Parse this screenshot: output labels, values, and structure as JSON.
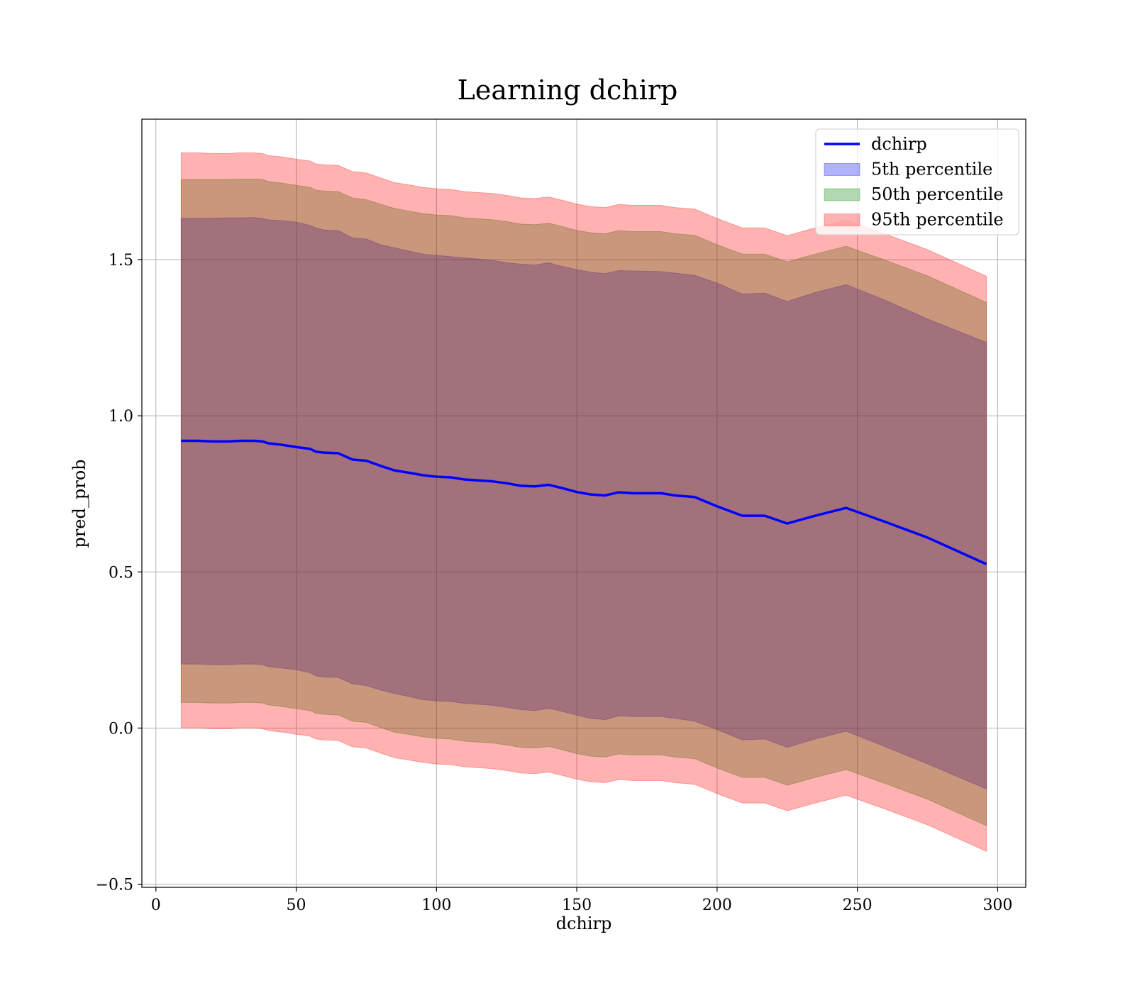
{
  "chart_data": {
    "type": "line",
    "title": "Learning dchirp",
    "xlabel": "dchirp",
    "ylabel": "pred_prob",
    "xlim": [
      -5,
      310
    ],
    "ylim": [
      -0.51,
      1.95
    ],
    "xticks": [
      0,
      50,
      100,
      150,
      200,
      250,
      300
    ],
    "yticks": [
      -0.5,
      0.0,
      0.5,
      1.0,
      1.5
    ],
    "xtick_labels": [
      "0",
      "50",
      "100",
      "150",
      "200",
      "250",
      "300"
    ],
    "ytick_labels": [
      "−0.5",
      "0.0",
      "0.5",
      "1.0",
      "1.5"
    ],
    "grid": true,
    "legend_position": "top-right",
    "x": [
      9,
      15,
      20,
      26,
      30,
      35,
      38,
      40,
      45,
      50,
      55,
      57,
      60,
      65,
      70,
      75,
      80,
      85,
      90,
      95,
      100,
      105,
      110,
      115,
      120,
      125,
      130,
      135,
      140,
      145,
      150,
      155,
      160,
      165,
      170,
      175,
      180,
      185,
      192,
      200,
      209,
      217,
      225,
      235,
      246,
      260,
      275,
      296
    ],
    "series": [
      {
        "name": "dchirp",
        "kind": "line",
        "color": "#0000ff",
        "values": [
          0.92,
          0.92,
          0.918,
          0.918,
          0.92,
          0.92,
          0.918,
          0.912,
          0.907,
          0.9,
          0.894,
          0.885,
          0.882,
          0.88,
          0.86,
          0.856,
          0.84,
          0.825,
          0.818,
          0.81,
          0.805,
          0.803,
          0.796,
          0.793,
          0.79,
          0.784,
          0.776,
          0.774,
          0.779,
          0.768,
          0.756,
          0.748,
          0.745,
          0.755,
          0.752,
          0.752,
          0.752,
          0.745,
          0.74,
          0.71,
          0.68,
          0.68,
          0.655,
          0.68,
          0.705,
          0.66,
          0.61,
          0.525
        ]
      },
      {
        "name": "5th percentile",
        "kind": "band",
        "color": "#0000ff",
        "upper": [
          1.632,
          1.633,
          1.633,
          1.634,
          1.634,
          1.635,
          1.632,
          1.628,
          1.625,
          1.62,
          1.61,
          1.602,
          1.595,
          1.593,
          1.57,
          1.566,
          1.548,
          1.538,
          1.528,
          1.518,
          1.514,
          1.51,
          1.506,
          1.502,
          1.498,
          1.49,
          1.486,
          1.483,
          1.49,
          1.478,
          1.468,
          1.46,
          1.455,
          1.465,
          1.464,
          1.463,
          1.462,
          1.457,
          1.45,
          1.425,
          1.39,
          1.393,
          1.366,
          1.395,
          1.42,
          1.37,
          1.31,
          1.235
        ],
        "lower": [
          0.205,
          0.205,
          0.203,
          0.203,
          0.205,
          0.205,
          0.203,
          0.197,
          0.192,
          0.187,
          0.177,
          0.167,
          0.163,
          0.162,
          0.142,
          0.136,
          0.122,
          0.111,
          0.101,
          0.091,
          0.087,
          0.085,
          0.079,
          0.076,
          0.073,
          0.066,
          0.059,
          0.056,
          0.063,
          0.053,
          0.041,
          0.031,
          0.027,
          0.039,
          0.037,
          0.037,
          0.037,
          0.031,
          0.022,
          -0.005,
          -0.038,
          -0.035,
          -0.062,
          -0.035,
          -0.01,
          -0.06,
          -0.115,
          -0.195
        ]
      },
      {
        "name": "50th percentile",
        "kind": "band",
        "color": "#008000",
        "upper": [
          1.757,
          1.757,
          1.757,
          1.757,
          1.758,
          1.758,
          1.757,
          1.751,
          1.745,
          1.738,
          1.732,
          1.723,
          1.72,
          1.718,
          1.698,
          1.692,
          1.678,
          1.664,
          1.656,
          1.648,
          1.643,
          1.641,
          1.634,
          1.631,
          1.628,
          1.622,
          1.614,
          1.612,
          1.617,
          1.606,
          1.594,
          1.586,
          1.583,
          1.593,
          1.59,
          1.59,
          1.59,
          1.583,
          1.578,
          1.548,
          1.518,
          1.518,
          1.493,
          1.518,
          1.543,
          1.498,
          1.448,
          1.363
        ],
        "lower": [
          0.082,
          0.082,
          0.08,
          0.08,
          0.082,
          0.082,
          0.08,
          0.074,
          0.069,
          0.062,
          0.056,
          0.047,
          0.044,
          0.042,
          0.022,
          0.018,
          0.002,
          -0.013,
          -0.02,
          -0.028,
          -0.033,
          -0.035,
          -0.042,
          -0.045,
          -0.048,
          -0.054,
          -0.062,
          -0.064,
          -0.059,
          -0.07,
          -0.082,
          -0.09,
          -0.093,
          -0.083,
          -0.086,
          -0.086,
          -0.086,
          -0.093,
          -0.098,
          -0.128,
          -0.158,
          -0.158,
          -0.183,
          -0.158,
          -0.133,
          -0.178,
          -0.228,
          -0.313
        ]
      },
      {
        "name": "95th percentile",
        "kind": "band",
        "color": "#ff0000",
        "upper": [
          1.842,
          1.842,
          1.84,
          1.84,
          1.842,
          1.842,
          1.84,
          1.834,
          1.829,
          1.822,
          1.816,
          1.807,
          1.804,
          1.802,
          1.782,
          1.778,
          1.762,
          1.747,
          1.74,
          1.732,
          1.727,
          1.725,
          1.718,
          1.715,
          1.712,
          1.706,
          1.698,
          1.696,
          1.701,
          1.69,
          1.678,
          1.67,
          1.667,
          1.677,
          1.674,
          1.674,
          1.674,
          1.667,
          1.662,
          1.632,
          1.602,
          1.602,
          1.577,
          1.602,
          1.627,
          1.582,
          1.532,
          1.447
        ],
        "lower": [
          0.0,
          0.0,
          -0.002,
          -0.002,
          0.0,
          0.0,
          -0.002,
          -0.008,
          -0.013,
          -0.02,
          -0.026,
          -0.035,
          -0.038,
          -0.04,
          -0.06,
          -0.064,
          -0.08,
          -0.095,
          -0.102,
          -0.11,
          -0.115,
          -0.117,
          -0.124,
          -0.127,
          -0.13,
          -0.136,
          -0.144,
          -0.146,
          -0.141,
          -0.152,
          -0.164,
          -0.172,
          -0.175,
          -0.165,
          -0.168,
          -0.168,
          -0.168,
          -0.175,
          -0.18,
          -0.21,
          -0.24,
          -0.24,
          -0.265,
          -0.24,
          -0.215,
          -0.26,
          -0.31,
          -0.395
        ]
      }
    ]
  }
}
